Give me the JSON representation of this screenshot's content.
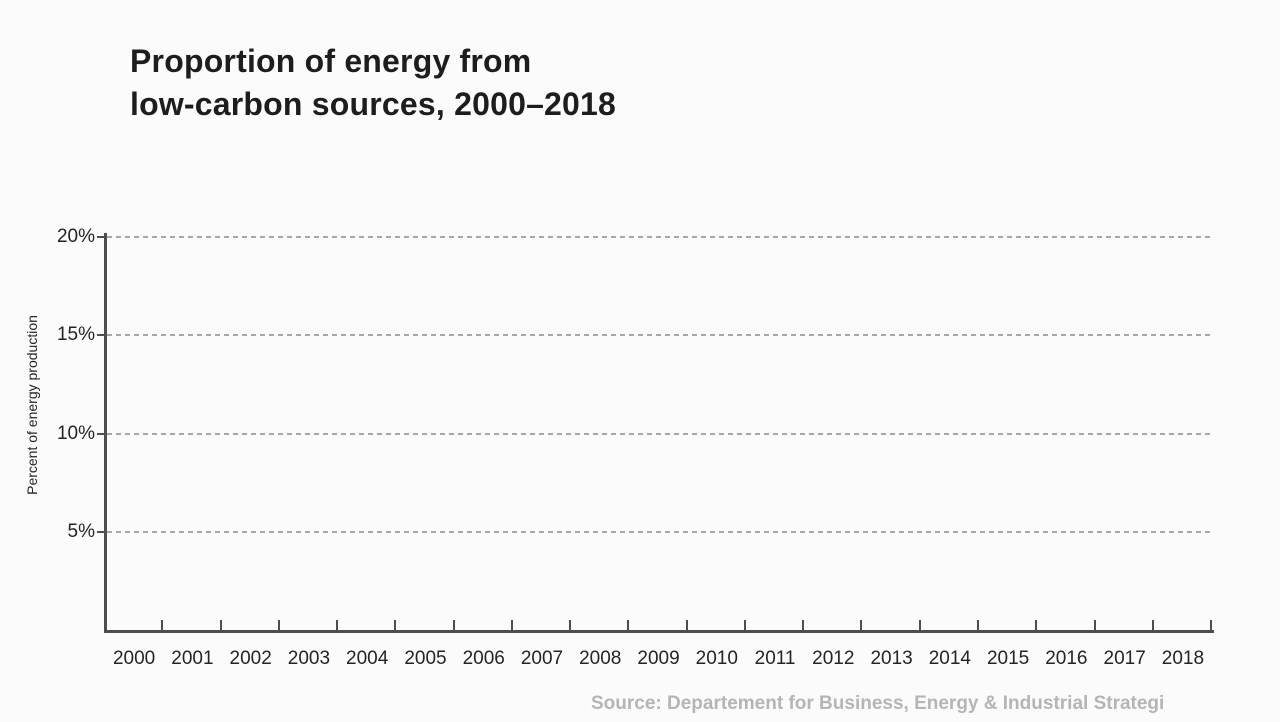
{
  "chart": {
    "title_line1": "Proportion of energy from",
    "title_line2": "low-carbon sources, 2000–2018",
    "y_axis_title": "Percent of energy production",
    "source_text": "Source: Departement for Business, Energy & Industrial Strategi",
    "y_tick_labels": [
      "20%",
      "15%",
      "10%",
      "5%"
    ],
    "x_tick_labels": [
      "2000",
      "2001",
      "2002",
      "2003",
      "2004",
      "2005",
      "2006",
      "2007",
      "2008",
      "2009",
      "2010",
      "2011",
      "2012",
      "2013",
      "2014",
      "2015",
      "2016",
      "2017",
      "2018"
    ],
    "colors": {
      "background": "#fbfbfb",
      "title": "#1d1d1d",
      "axis": "#4d4d4d",
      "gridline": "#a8a8a8",
      "tick_label": "#242424",
      "source": "#b5b5b5"
    }
  },
  "chart_data": {
    "type": "line",
    "title": "Proportion of energy from low-carbon sources, 2000–2018",
    "xlabel": "",
    "ylabel": "Percent of energy production",
    "x": [
      2000,
      2001,
      2002,
      2003,
      2004,
      2005,
      2006,
      2007,
      2008,
      2009,
      2010,
      2011,
      2012,
      2013,
      2014,
      2015,
      2016,
      2017,
      2018
    ],
    "xlim": [
      2000,
      2019
    ],
    "ylim": [
      0,
      20
    ],
    "y_ticks_percent": [
      5,
      10,
      15,
      20
    ],
    "grid": "horizontal dashed gridlines at each 5% tick",
    "legend_position": "none",
    "series": [],
    "plot_area_empty": true,
    "source": "Source: Departement for Business, Energy & Industrial Strategi"
  }
}
